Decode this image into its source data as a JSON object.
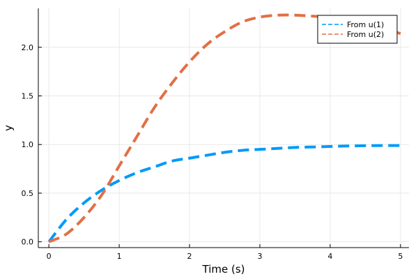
{
  "chart_data": {
    "type": "line",
    "title": "",
    "xlabel": "Time (s)",
    "ylabel": "y",
    "xlim": [
      -0.15,
      5.12
    ],
    "ylim": [
      -0.06,
      2.4
    ],
    "xticks": [
      0,
      1,
      2,
      3,
      4,
      5
    ],
    "xtick_labels": [
      "0",
      "1",
      "2",
      "3",
      "4",
      "5"
    ],
    "yticks": [
      0.0,
      0.5,
      1.0,
      1.5,
      2.0
    ],
    "ytick_labels": [
      "0.0",
      "0.5",
      "1.0",
      "1.5",
      "2.0"
    ],
    "grid": true,
    "legend_position": "top-right",
    "x": [
      0,
      0.25,
      0.5,
      0.75,
      1.0,
      1.25,
      1.5,
      1.75,
      2.0,
      2.25,
      2.5,
      2.75,
      3.0,
      3.25,
      3.5,
      3.75,
      4.0,
      4.25,
      4.5,
      4.75,
      5.0
    ],
    "series": [
      {
        "name": "From u(1)",
        "color": "#009af9",
        "values": [
          0.0,
          0.23,
          0.4,
          0.53,
          0.63,
          0.71,
          0.77,
          0.83,
          0.86,
          0.89,
          0.92,
          0.94,
          0.95,
          0.96,
          0.97,
          0.975,
          0.98,
          0.985,
          0.988,
          0.99,
          0.99
        ]
      },
      {
        "name": "From u(2)",
        "color": "#e26f46",
        "values": [
          0.0,
          0.08,
          0.25,
          0.48,
          0.78,
          1.08,
          1.38,
          1.63,
          1.85,
          2.03,
          2.16,
          2.26,
          2.31,
          2.33,
          2.33,
          2.32,
          2.31,
          2.29,
          2.25,
          2.2,
          2.14
        ]
      }
    ]
  }
}
